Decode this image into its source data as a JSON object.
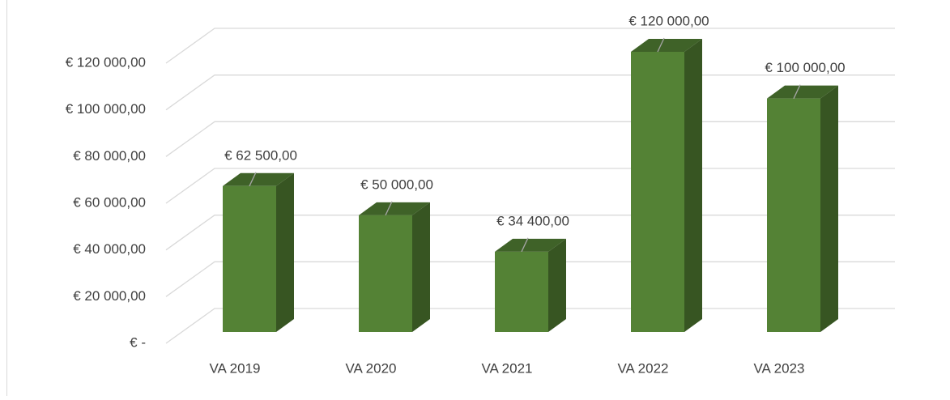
{
  "chart_data": {
    "type": "bar3d",
    "categories": [
      "VA 2019",
      "VA 2020",
      "VA 2021",
      "VA 2022",
      "VA 2023"
    ],
    "values": [
      62500,
      50000,
      34400,
      120000,
      100000
    ],
    "value_labels": [
      "€ 62 500,00",
      "€ 50 000,00",
      "€ 34 400,00",
      "€ 120 000,00",
      "€ 100 000,00"
    ],
    "color": "#548235",
    "ylim": [
      0,
      120000
    ],
    "yticks": [
      {
        "value": 0,
        "label": "€ -"
      },
      {
        "value": 20000,
        "label": "€ 20 000,00"
      },
      {
        "value": 40000,
        "label": "€ 40 000,00"
      },
      {
        "value": 60000,
        "label": "€ 60 000,00"
      },
      {
        "value": 80000,
        "label": "€ 80 000,00"
      },
      {
        "value": 100000,
        "label": "€ 100 000,00"
      },
      {
        "value": 120000,
        "label": "€ 120 000,00"
      }
    ],
    "grid": true
  }
}
